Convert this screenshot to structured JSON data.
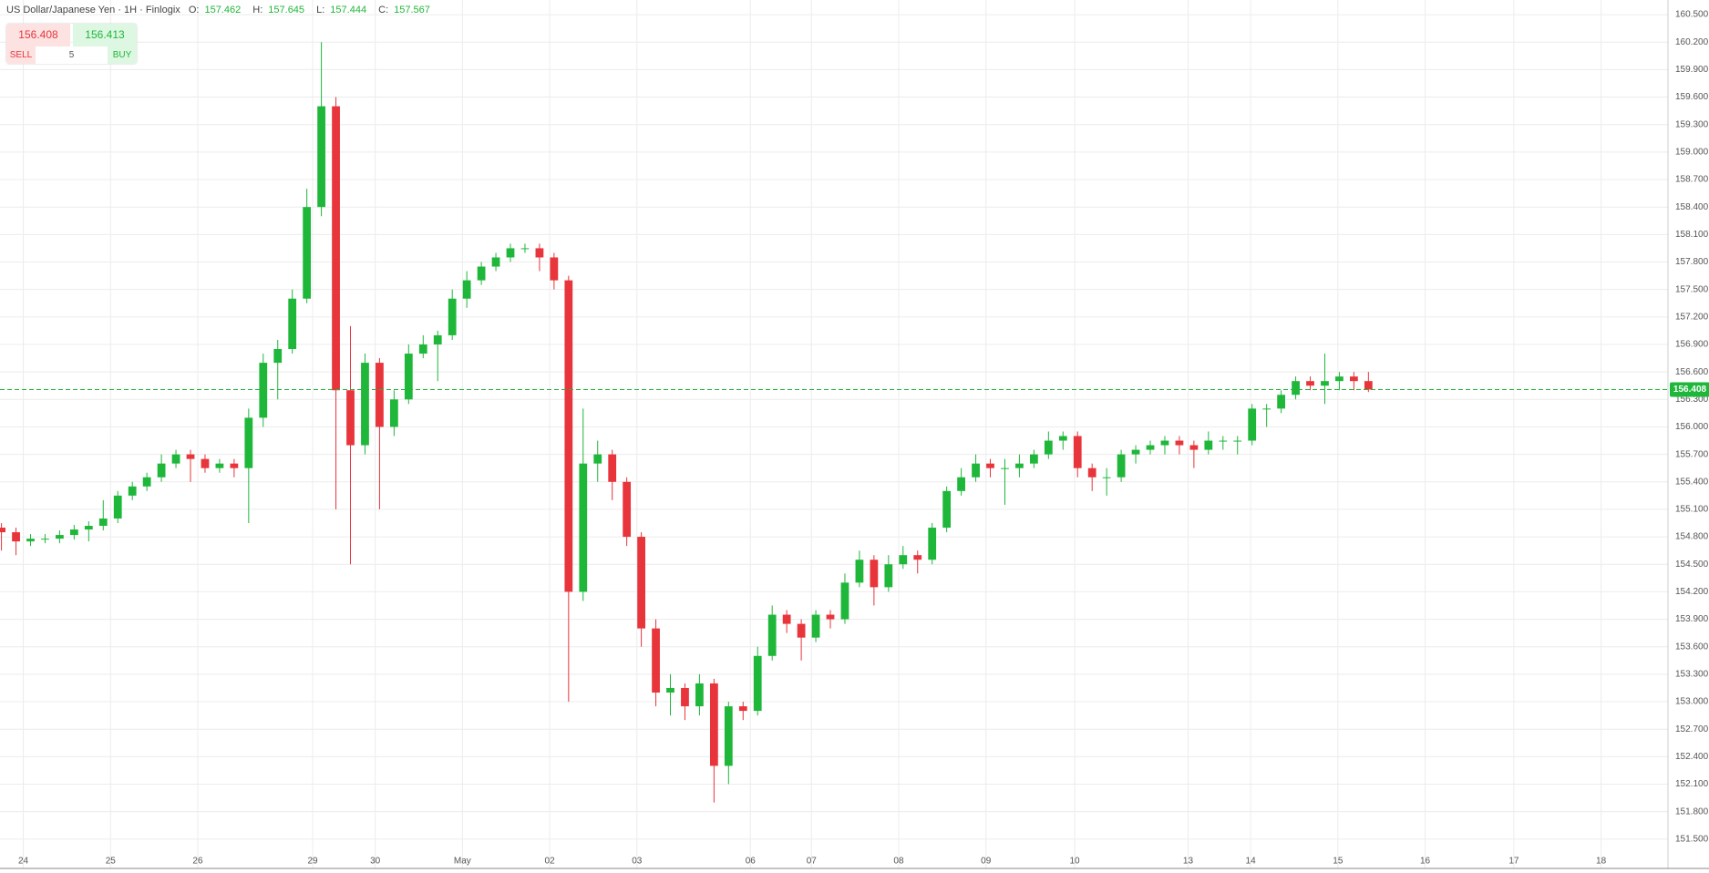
{
  "chart_data": {
    "type": "candlestick",
    "title": "US Dollar/Japanese Yen · 1H · Finlogix",
    "ohlc_legend": {
      "labels": [
        "O:",
        "H:",
        "L:",
        "C:"
      ],
      "values": [
        157.462,
        157.645,
        157.444,
        157.567
      ]
    },
    "series": [
      {
        "up_color": "#1fb73a",
        "down_color": "#e8343b",
        "open": [
          154.9,
          154.85,
          154.75,
          154.78,
          154.78,
          154.82,
          154.88,
          154.92,
          155.0,
          155.25,
          155.35,
          155.45,
          155.6,
          155.7,
          155.65,
          155.55,
          155.6,
          155.55,
          156.1,
          156.7,
          156.85,
          157.4,
          158.4,
          159.5,
          156.4,
          155.8,
          156.7,
          156.0,
          156.3,
          156.8,
          156.9,
          157.0,
          157.4,
          157.6,
          157.75,
          157.85,
          157.95,
          157.95,
          157.85,
          157.6,
          154.2,
          155.6,
          155.7,
          155.4,
          154.8,
          153.8,
          153.1,
          153.15,
          152.95,
          153.2,
          152.3,
          152.95,
          152.9,
          153.5,
          153.95,
          153.85,
          153.7,
          153.95,
          153.9,
          154.3,
          154.55,
          154.25,
          154.5,
          154.6,
          154.55,
          154.9,
          155.3,
          155.45,
          155.6,
          155.55,
          155.55,
          155.6,
          155.7,
          155.85,
          155.9,
          155.55,
          155.45,
          155.45,
          155.7,
          155.75,
          155.8,
          155.85,
          155.8,
          155.75,
          155.85,
          155.85,
          155.85,
          156.2,
          156.2,
          156.35,
          156.5,
          156.45,
          156.5,
          156.55,
          156.5
        ],
        "high": [
          154.95,
          154.9,
          154.83,
          154.83,
          154.87,
          154.93,
          154.97,
          155.2,
          155.3,
          155.4,
          155.5,
          155.7,
          155.75,
          155.75,
          155.7,
          155.65,
          155.65,
          156.2,
          156.8,
          156.95,
          157.5,
          158.6,
          160.2,
          159.6,
          157.1,
          156.8,
          156.75,
          156.4,
          156.9,
          157.0,
          157.05,
          157.5,
          157.7,
          157.8,
          157.9,
          158.0,
          158.0,
          158.0,
          157.9,
          157.65,
          156.2,
          155.85,
          155.75,
          155.45,
          154.85,
          153.9,
          153.3,
          153.2,
          153.3,
          153.25,
          153.0,
          153.0,
          153.6,
          154.05,
          154.0,
          153.9,
          154.0,
          154.0,
          154.4,
          154.65,
          154.6,
          154.6,
          154.7,
          154.65,
          154.95,
          155.35,
          155.55,
          155.7,
          155.65,
          155.65,
          155.7,
          155.75,
          155.95,
          155.95,
          155.95,
          155.6,
          155.55,
          155.75,
          155.8,
          155.85,
          155.9,
          155.9,
          155.85,
          155.95,
          155.9,
          155.9,
          156.25,
          156.25,
          156.4,
          156.55,
          156.55,
          156.8,
          156.6,
          156.6,
          156.6
        ],
        "low": [
          154.65,
          154.6,
          154.7,
          154.73,
          154.73,
          154.77,
          154.75,
          154.87,
          154.95,
          155.2,
          155.3,
          155.4,
          155.55,
          155.4,
          155.5,
          155.5,
          155.45,
          154.95,
          156.0,
          156.3,
          156.8,
          157.35,
          158.3,
          155.1,
          154.5,
          155.7,
          155.1,
          155.9,
          156.25,
          156.75,
          156.5,
          156.95,
          157.3,
          157.55,
          157.7,
          157.8,
          157.9,
          157.7,
          157.5,
          153.0,
          154.1,
          155.4,
          155.2,
          154.7,
          153.6,
          152.95,
          152.85,
          152.8,
          152.85,
          151.9,
          152.1,
          152.8,
          152.85,
          153.45,
          153.75,
          153.45,
          153.65,
          153.8,
          153.85,
          154.25,
          154.05,
          154.2,
          154.45,
          154.4,
          154.5,
          154.85,
          155.25,
          155.4,
          155.45,
          155.15,
          155.45,
          155.55,
          155.65,
          155.75,
          155.45,
          155.3,
          155.25,
          155.4,
          155.6,
          155.7,
          155.7,
          155.7,
          155.55,
          155.7,
          155.75,
          155.7,
          155.8,
          156.0,
          156.15,
          156.3,
          156.4,
          156.25,
          156.4,
          156.4,
          156.38
        ],
        "close": [
          154.85,
          154.75,
          154.78,
          154.78,
          154.82,
          154.88,
          154.92,
          155.0,
          155.25,
          155.35,
          155.45,
          155.6,
          155.7,
          155.65,
          155.55,
          155.6,
          155.55,
          156.1,
          156.7,
          156.85,
          157.4,
          158.4,
          159.5,
          156.4,
          155.8,
          156.7,
          156.0,
          156.3,
          156.8,
          156.9,
          157.0,
          157.4,
          157.6,
          157.75,
          157.85,
          157.95,
          157.95,
          157.85,
          157.6,
          154.2,
          155.6,
          155.7,
          155.4,
          154.8,
          153.8,
          153.1,
          153.15,
          152.95,
          153.2,
          152.3,
          152.95,
          152.9,
          153.5,
          153.95,
          153.85,
          153.7,
          153.95,
          153.9,
          154.3,
          154.55,
          154.25,
          154.5,
          154.6,
          154.55,
          154.9,
          155.3,
          155.45,
          155.6,
          155.55,
          155.55,
          155.6,
          155.7,
          155.85,
          155.9,
          155.55,
          155.45,
          155.45,
          155.7,
          155.75,
          155.8,
          155.85,
          155.8,
          155.75,
          155.85,
          155.85,
          155.85,
          156.2,
          156.2,
          156.35,
          156.5,
          156.45,
          156.5,
          156.55,
          156.5,
          156.408
        ]
      }
    ],
    "last_price": 156.408,
    "last_price_color": "#1fb73a",
    "xlim": [
      -0.1,
      114.6
    ],
    "xticks": [
      {
        "value": 1.5,
        "label": "24"
      },
      {
        "value": 7.5,
        "label": "25"
      },
      {
        "value": 13.5,
        "label": "26"
      },
      {
        "value": 21.4,
        "label": "29"
      },
      {
        "value": 25.7,
        "label": "30"
      },
      {
        "value": 31.7,
        "label": "May"
      },
      {
        "value": 37.7,
        "label": "02"
      },
      {
        "value": 43.7,
        "label": "03"
      },
      {
        "value": 51.5,
        "label": "06"
      },
      {
        "value": 55.7,
        "label": "07"
      },
      {
        "value": 61.7,
        "label": "08"
      },
      {
        "value": 67.7,
        "label": "09"
      },
      {
        "value": 73.8,
        "label": "10"
      },
      {
        "value": 81.6,
        "label": "13"
      },
      {
        "value": 85.9,
        "label": "14"
      },
      {
        "value": 91.9,
        "label": "15"
      },
      {
        "value": 97.9,
        "label": "16"
      },
      {
        "value": 104,
        "label": "17"
      },
      {
        "value": 110,
        "label": "18"
      }
    ],
    "ylim": [
      151.18,
      160.66
    ],
    "yticks": [
      {
        "value": 151.5,
        "label": "151.500"
      },
      {
        "value": 151.8,
        "label": "151.800"
      },
      {
        "value": 152.1,
        "label": "152.100"
      },
      {
        "value": 152.4,
        "label": "152.400"
      },
      {
        "value": 152.7,
        "label": "152.700"
      },
      {
        "value": 153,
        "label": "153.000"
      },
      {
        "value": 153.3,
        "label": "153.300"
      },
      {
        "value": 153.6,
        "label": "153.600"
      },
      {
        "value": 153.9,
        "label": "153.900"
      },
      {
        "value": 154.2,
        "label": "154.200"
      },
      {
        "value": 154.5,
        "label": "154.500"
      },
      {
        "value": 154.8,
        "label": "154.800"
      },
      {
        "value": 155.1,
        "label": "155.100"
      },
      {
        "value": 155.4,
        "label": "155.400"
      },
      {
        "value": 155.7,
        "label": "155.700"
      },
      {
        "value": 156,
        "label": "156.000"
      },
      {
        "value": 156.3,
        "label": "156.300"
      },
      {
        "value": 156.6,
        "label": "156.600"
      },
      {
        "value": 156.9,
        "label": "156.900"
      },
      {
        "value": 157.2,
        "label": "157.200"
      },
      {
        "value": 157.5,
        "label": "157.500"
      },
      {
        "value": 157.8,
        "label": "157.800"
      },
      {
        "value": 158.1,
        "label": "158.100"
      },
      {
        "value": 158.4,
        "label": "158.400"
      },
      {
        "value": 158.7,
        "label": "158.700"
      },
      {
        "value": 159,
        "label": "159.000"
      },
      {
        "value": 159.3,
        "label": "159.300"
      },
      {
        "value": 159.6,
        "label": "159.600"
      },
      {
        "value": 159.9,
        "label": "159.900"
      },
      {
        "value": 160.2,
        "label": "160.200"
      },
      {
        "value": 160.5,
        "label": "160.500"
      }
    ],
    "grid": true
  },
  "trade_panel": {
    "sell_price": 156.408,
    "buy_price": 156.413,
    "sell_label": "SELL",
    "buy_label": "BUY",
    "spread": 5
  }
}
